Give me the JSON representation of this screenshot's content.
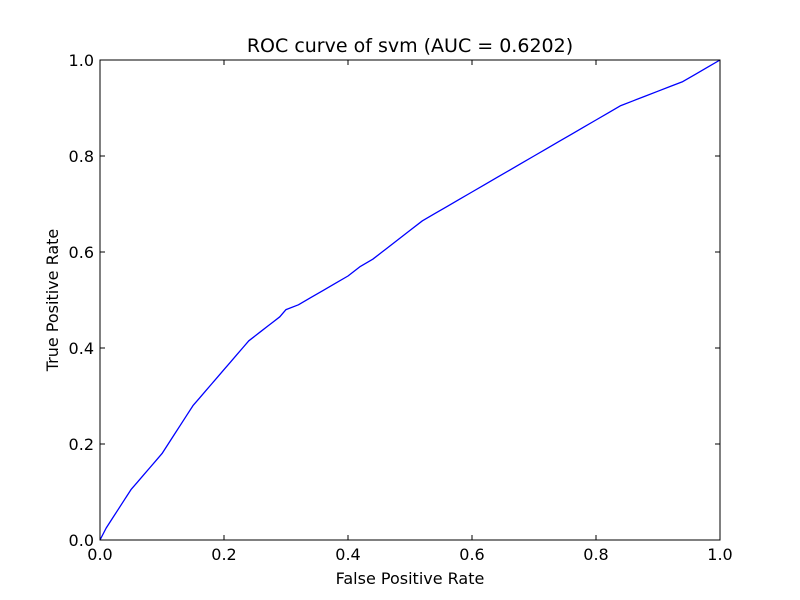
{
  "chart_data": {
    "type": "line",
    "title": "ROC curve of svm (AUC = 0.6202)",
    "xlabel": "False Positive Rate",
    "ylabel": "True Positive Rate",
    "xlim": [
      0.0,
      1.0
    ],
    "ylim": [
      0.0,
      1.0
    ],
    "x_ticks": [
      "0.0",
      "0.2",
      "0.4",
      "0.6",
      "0.8",
      "1.0"
    ],
    "y_ticks": [
      "0.0",
      "0.2",
      "0.4",
      "0.6",
      "0.8",
      "1.0"
    ],
    "grid": false,
    "series": [
      {
        "color": "#0000ff",
        "x": [
          0.0,
          0.01,
          0.02,
          0.03,
          0.04,
          0.05,
          0.06,
          0.07,
          0.08,
          0.09,
          0.1,
          0.11,
          0.12,
          0.13,
          0.14,
          0.15,
          0.16,
          0.17,
          0.18,
          0.19,
          0.2,
          0.21,
          0.22,
          0.23,
          0.24,
          0.25,
          0.26,
          0.27,
          0.28,
          0.29,
          0.3,
          0.32,
          0.34,
          0.36,
          0.38,
          0.4,
          0.42,
          0.44,
          0.46,
          0.48,
          0.5,
          0.52,
          0.54,
          0.56,
          0.58,
          0.6,
          0.62,
          0.64,
          0.66,
          0.68,
          0.7,
          0.72,
          0.74,
          0.76,
          0.78,
          0.8,
          0.82,
          0.84,
          0.86,
          0.88,
          0.9,
          0.92,
          0.94,
          0.96,
          0.98,
          1.0
        ],
        "y": [
          0.0,
          0.025,
          0.045,
          0.065,
          0.085,
          0.105,
          0.12,
          0.135,
          0.15,
          0.165,
          0.18,
          0.2,
          0.22,
          0.24,
          0.26,
          0.28,
          0.295,
          0.31,
          0.325,
          0.34,
          0.355,
          0.37,
          0.385,
          0.4,
          0.415,
          0.425,
          0.435,
          0.445,
          0.455,
          0.465,
          0.48,
          0.49,
          0.505,
          0.52,
          0.535,
          0.55,
          0.57,
          0.585,
          0.605,
          0.625,
          0.645,
          0.665,
          0.68,
          0.695,
          0.71,
          0.725,
          0.74,
          0.755,
          0.77,
          0.785,
          0.8,
          0.815,
          0.83,
          0.845,
          0.86,
          0.875,
          0.89,
          0.905,
          0.915,
          0.925,
          0.935,
          0.945,
          0.955,
          0.97,
          0.985,
          1.0
        ]
      }
    ]
  }
}
